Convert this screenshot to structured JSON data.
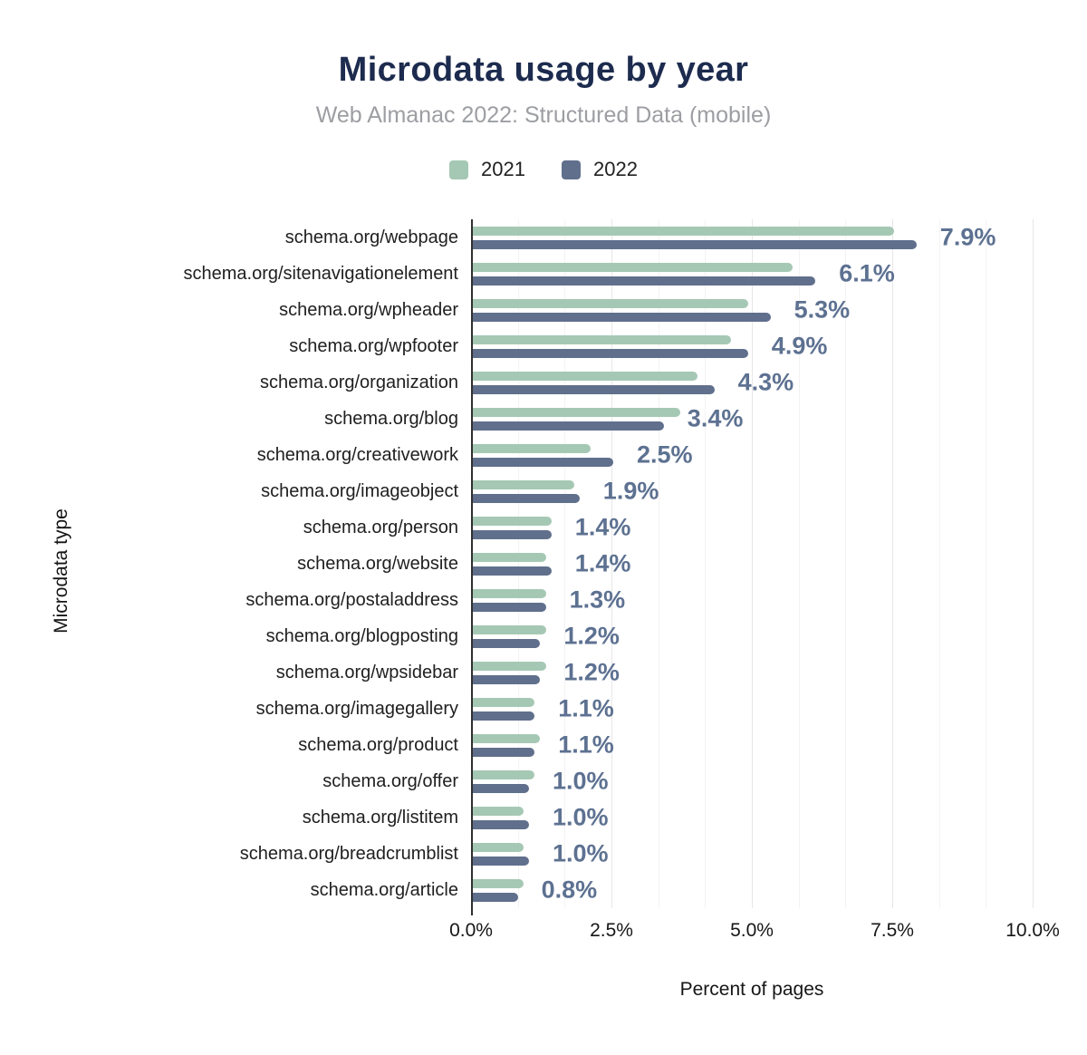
{
  "header": {
    "title": "Microdata usage by year",
    "subtitle": "Web Almanac 2022: Structured Data (mobile)"
  },
  "legend": [
    {
      "label": "2021",
      "color": "#a5c8b4"
    },
    {
      "label": "2022",
      "color": "#606f8c"
    }
  ],
  "colors": {
    "title": "#1c2b4e",
    "subtitle": "#9c9ea2",
    "series_2021": "#a5c8b4",
    "series_2022": "#606f8c",
    "value_label": "#5d7191",
    "axis": "#2f2f2f"
  },
  "chart_data": {
    "type": "bar",
    "orientation": "horizontal",
    "title": "Microdata usage by year",
    "subtitle": "Web Almanac 2022: Structured Data (mobile)",
    "xlabel": "Percent of pages",
    "ylabel": "Microdata type",
    "xlim": [
      0,
      10
    ],
    "x_ticks": [
      "0.0%",
      "2.5%",
      "5.0%",
      "7.5%",
      "10.0%"
    ],
    "x_tick_values": [
      0,
      2.5,
      5,
      7.5,
      10
    ],
    "grid": "vertical; major every 2.5%, two minor lines between majors",
    "legend_position": "top",
    "categories": [
      "schema.org/webpage",
      "schema.org/sitenavigationelement",
      "schema.org/wpheader",
      "schema.org/wpfooter",
      "schema.org/organization",
      "schema.org/blog",
      "schema.org/creativework",
      "schema.org/imageobject",
      "schema.org/person",
      "schema.org/website",
      "schema.org/postaladdress",
      "schema.org/blogposting",
      "schema.org/wpsidebar",
      "schema.org/imagegallery",
      "schema.org/product",
      "schema.org/offer",
      "schema.org/listitem",
      "schema.org/breadcrumblist",
      "schema.org/article"
    ],
    "series": [
      {
        "name": "2021",
        "color": "#a5c8b4",
        "values": [
          7.5,
          5.7,
          4.9,
          4.6,
          4.0,
          3.7,
          2.1,
          1.8,
          1.4,
          1.3,
          1.3,
          1.3,
          1.3,
          1.1,
          1.2,
          1.1,
          0.9,
          0.9,
          0.9
        ]
      },
      {
        "name": "2022",
        "color": "#606f8c",
        "values": [
          7.9,
          6.1,
          5.3,
          4.9,
          4.3,
          3.4,
          2.5,
          1.9,
          1.4,
          1.4,
          1.3,
          1.2,
          1.2,
          1.1,
          1.1,
          1.0,
          1.0,
          1.0,
          0.8
        ]
      }
    ],
    "data_labels": [
      "7.9%",
      "6.1%",
      "5.3%",
      "4.9%",
      "4.3%",
      "3.4%",
      "2.5%",
      "1.9%",
      "1.4%",
      "1.4%",
      "1.3%",
      "1.2%",
      "1.2%",
      "1.1%",
      "1.1%",
      "1.0%",
      "1.0%",
      "1.0%",
      "0.8%"
    ]
  }
}
